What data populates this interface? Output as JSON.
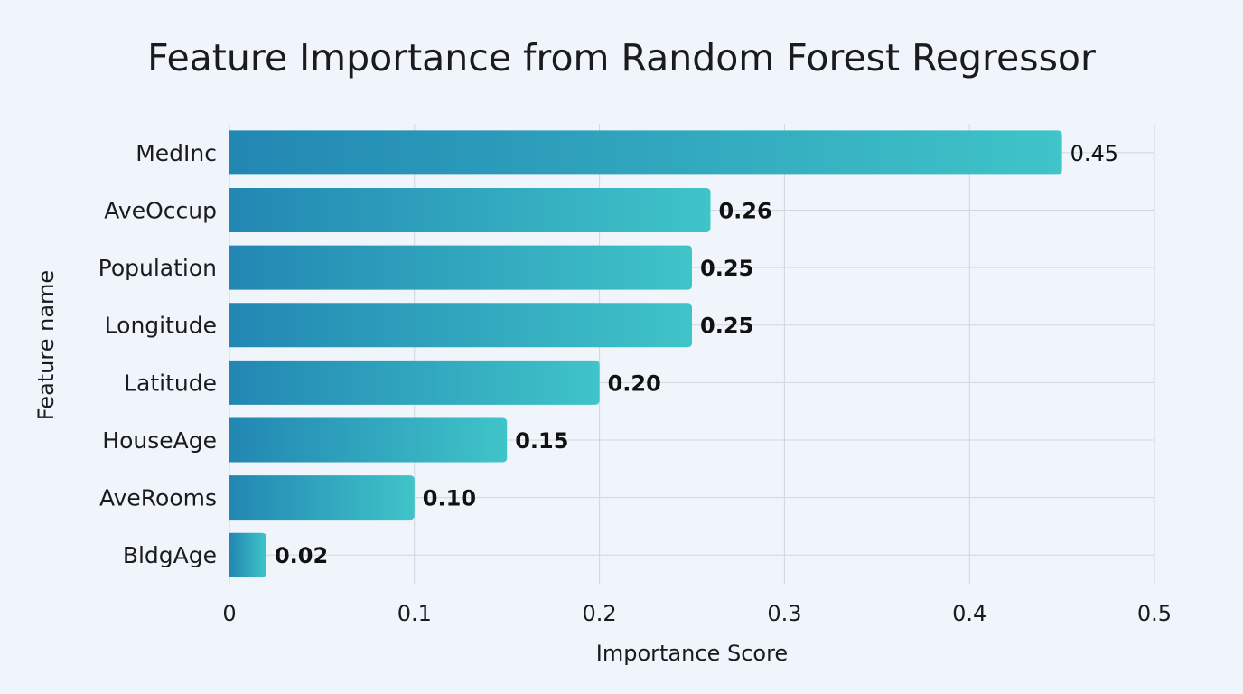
{
  "colors": {
    "background": "#eff5fa",
    "bar_gradient_start": "#2287b3",
    "bar_gradient_end": "#3fc4c8",
    "grid": "#cfd6dd",
    "text": "#1b1b1f"
  },
  "chart_data": {
    "type": "bar",
    "orientation": "horizontal",
    "title": "Feature Importance from Random Forest Regressor",
    "xlabel": "Importance Score",
    "ylabel": "Feature name",
    "categories": [
      "MedInc",
      "AveOccup",
      "Population",
      "Longitude",
      "Latitude",
      "HouseAge",
      "AveRooms",
      "BldgAge"
    ],
    "values": [
      0.45,
      0.26,
      0.25,
      0.25,
      0.2,
      0.15,
      0.1,
      0.02
    ],
    "value_labels": [
      "0.45",
      "0.26",
      "0.25",
      "0.25",
      "0.20",
      "0.15",
      "0.10",
      "0.02"
    ],
    "xlim": [
      0,
      0.5
    ],
    "xticks": [
      0,
      0.1,
      0.2,
      0.3,
      0.4,
      0.5
    ],
    "xtick_labels": [
      "0",
      "0.1",
      "0.2",
      "0.3",
      "0.4",
      "0.5"
    ],
    "grid": true,
    "legend": false
  }
}
